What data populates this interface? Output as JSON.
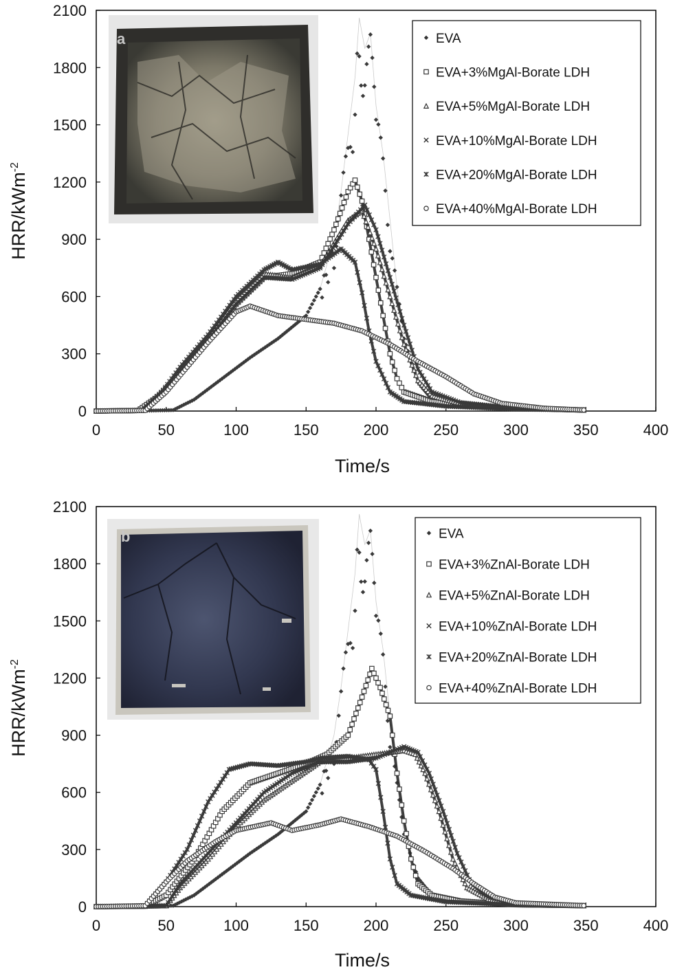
{
  "chart_data": [
    {
      "type": "scatter",
      "panel_label": "a",
      "xlabel": "Time/s",
      "ylabel": "HRR/kWm",
      "ylabel_sup": "-2",
      "xlim": [
        0,
        400
      ],
      "ylim": [
        0,
        2100
      ],
      "xticks": [
        0,
        50,
        100,
        150,
        200,
        250,
        300,
        350,
        400
      ],
      "yticks": [
        0,
        300,
        600,
        900,
        1200,
        1500,
        1800,
        2100
      ],
      "legend_position": "top-right",
      "inset_image": "charred-residue-photo-light",
      "series": [
        {
          "name": "EVA",
          "marker": "diamond",
          "points": [
            [
              0,
              0
            ],
            [
              35,
              2
            ],
            [
              55,
              5
            ],
            [
              70,
              60
            ],
            [
              90,
              170
            ],
            [
              110,
              280
            ],
            [
              130,
              380
            ],
            [
              150,
              500
            ],
            [
              160,
              640
            ],
            [
              170,
              900
            ],
            [
              175,
              1150
            ],
            [
              180,
              1450
            ],
            [
              185,
              1750
            ],
            [
              188,
              2060
            ],
            [
              192,
              1900
            ],
            [
              196,
              1980
            ],
            [
              200,
              1600
            ],
            [
              205,
              1350
            ],
            [
              210,
              1000
            ],
            [
              215,
              650
            ],
            [
              220,
              380
            ],
            [
              230,
              150
            ],
            [
              240,
              60
            ],
            [
              260,
              25
            ],
            [
              300,
              10
            ],
            [
              350,
              5
            ]
          ]
        },
        {
          "name": "EVA+3%MgAl-Borate LDH",
          "marker": "square",
          "points": [
            [
              0,
              0
            ],
            [
              30,
              3
            ],
            [
              45,
              80
            ],
            [
              60,
              200
            ],
            [
              80,
              370
            ],
            [
              100,
              560
            ],
            [
              120,
              700
            ],
            [
              140,
              720
            ],
            [
              160,
              780
            ],
            [
              170,
              950
            ],
            [
              180,
              1150
            ],
            [
              185,
              1210
            ],
            [
              190,
              1100
            ],
            [
              195,
              900
            ],
            [
              200,
              700
            ],
            [
              205,
              500
            ],
            [
              210,
              300
            ],
            [
              215,
              170
            ],
            [
              220,
              100
            ],
            [
              240,
              50
            ],
            [
              280,
              20
            ],
            [
              350,
              5
            ]
          ]
        },
        {
          "name": "EVA+5%MgAl-Borate LDH",
          "marker": "triangle",
          "points": [
            [
              0,
              0
            ],
            [
              32,
              3
            ],
            [
              48,
              100
            ],
            [
              60,
              210
            ],
            [
              80,
              380
            ],
            [
              100,
              580
            ],
            [
              120,
              720
            ],
            [
              140,
              700
            ],
            [
              160,
              760
            ],
            [
              180,
              1000
            ],
            [
              190,
              1050
            ],
            [
              200,
              850
            ],
            [
              210,
              600
            ],
            [
              220,
              350
            ],
            [
              230,
              160
            ],
            [
              240,
              80
            ],
            [
              260,
              40
            ],
            [
              300,
              15
            ],
            [
              350,
              5
            ]
          ]
        },
        {
          "name": "EVA+10%MgAl-Borate LDH",
          "marker": "x",
          "points": [
            [
              0,
              0
            ],
            [
              33,
              3
            ],
            [
              48,
              90
            ],
            [
              60,
              200
            ],
            [
              80,
              370
            ],
            [
              100,
              560
            ],
            [
              120,
              700
            ],
            [
              140,
              690
            ],
            [
              160,
              750
            ],
            [
              180,
              980
            ],
            [
              192,
              1080
            ],
            [
              200,
              950
            ],
            [
              210,
              700
            ],
            [
              220,
              450
            ],
            [
              230,
              220
            ],
            [
              240,
              100
            ],
            [
              260,
              45
            ],
            [
              300,
              15
            ],
            [
              350,
              5
            ]
          ]
        },
        {
          "name": "EVA+20%MgAl-Borate LDH",
          "marker": "asterisk",
          "points": [
            [
              0,
              0
            ],
            [
              33,
              3
            ],
            [
              48,
              110
            ],
            [
              60,
              230
            ],
            [
              80,
              400
            ],
            [
              100,
              600
            ],
            [
              120,
              740
            ],
            [
              130,
              780
            ],
            [
              140,
              740
            ],
            [
              160,
              770
            ],
            [
              175,
              850
            ],
            [
              185,
              780
            ],
            [
              190,
              620
            ],
            [
              195,
              420
            ],
            [
              200,
              260
            ],
            [
              210,
              100
            ],
            [
              220,
              50
            ],
            [
              250,
              25
            ],
            [
              300,
              10
            ],
            [
              350,
              5
            ]
          ]
        },
        {
          "name": "EVA+40%MgAl-Borate LDH",
          "marker": "circle",
          "points": [
            [
              0,
              0
            ],
            [
              35,
              3
            ],
            [
              50,
              100
            ],
            [
              65,
              230
            ],
            [
              80,
              360
            ],
            [
              100,
              520
            ],
            [
              110,
              550
            ],
            [
              130,
              500
            ],
            [
              150,
              480
            ],
            [
              170,
              460
            ],
            [
              190,
              420
            ],
            [
              210,
              350
            ],
            [
              230,
              260
            ],
            [
              250,
              180
            ],
            [
              270,
              90
            ],
            [
              290,
              40
            ],
            [
              320,
              15
            ],
            [
              350,
              5
            ]
          ]
        }
      ]
    },
    {
      "type": "scatter",
      "panel_label": "b",
      "xlabel": "Time/s",
      "ylabel": "HRR/kWm",
      "ylabel_sup": "-2",
      "xlim": [
        0,
        400
      ],
      "ylim": [
        0,
        2100
      ],
      "xticks": [
        0,
        50,
        100,
        150,
        200,
        250,
        300,
        350,
        400
      ],
      "yticks": [
        0,
        300,
        600,
        900,
        1200,
        1500,
        1800,
        2100
      ],
      "legend_position": "top-right",
      "inset_image": "charred-residue-photo-dark",
      "series": [
        {
          "name": "EVA",
          "marker": "diamond",
          "points": [
            [
              0,
              0
            ],
            [
              35,
              2
            ],
            [
              55,
              5
            ],
            [
              70,
              60
            ],
            [
              90,
              170
            ],
            [
              110,
              280
            ],
            [
              130,
              380
            ],
            [
              150,
              500
            ],
            [
              160,
              640
            ],
            [
              170,
              900
            ],
            [
              175,
              1150
            ],
            [
              180,
              1450
            ],
            [
              185,
              1750
            ],
            [
              188,
              2060
            ],
            [
              192,
              1900
            ],
            [
              196,
              1980
            ],
            [
              200,
              1600
            ],
            [
              205,
              1350
            ],
            [
              210,
              1000
            ],
            [
              215,
              650
            ],
            [
              220,
              380
            ],
            [
              230,
              150
            ],
            [
              240,
              60
            ],
            [
              260,
              25
            ],
            [
              300,
              10
            ],
            [
              350,
              5
            ]
          ]
        },
        {
          "name": "EVA+3%ZnAl-Borate LDH",
          "marker": "square",
          "points": [
            [
              0,
              0
            ],
            [
              35,
              2
            ],
            [
              50,
              60
            ],
            [
              70,
              250
            ],
            [
              90,
              500
            ],
            [
              110,
              650
            ],
            [
              130,
              700
            ],
            [
              150,
              750
            ],
            [
              165,
              800
            ],
            [
              180,
              900
            ],
            [
              190,
              1100
            ],
            [
              197,
              1250
            ],
            [
              203,
              1150
            ],
            [
              210,
              1000
            ],
            [
              215,
              700
            ],
            [
              220,
              450
            ],
            [
              225,
              250
            ],
            [
              230,
              120
            ],
            [
              240,
              60
            ],
            [
              260,
              30
            ],
            [
              300,
              10
            ],
            [
              350,
              5
            ]
          ]
        },
        {
          "name": "EVA+5%ZnAl-Borate LDH",
          "marker": "triangle",
          "points": [
            [
              0,
              0
            ],
            [
              50,
              5
            ],
            [
              60,
              100
            ],
            [
              80,
              250
            ],
            [
              100,
              420
            ],
            [
              120,
              560
            ],
            [
              140,
              660
            ],
            [
              160,
              760
            ],
            [
              180,
              780
            ],
            [
              200,
              800
            ],
            [
              220,
              820
            ],
            [
              228,
              800
            ],
            [
              235,
              700
            ],
            [
              245,
              500
            ],
            [
              255,
              250
            ],
            [
              265,
              100
            ],
            [
              280,
              40
            ],
            [
              300,
              15
            ],
            [
              350,
              5
            ]
          ]
        },
        {
          "name": "EVA+10%ZnAl-Borate LDH",
          "marker": "x",
          "points": [
            [
              0,
              0
            ],
            [
              50,
              5
            ],
            [
              60,
              120
            ],
            [
              80,
              280
            ],
            [
              100,
              440
            ],
            [
              120,
              600
            ],
            [
              140,
              700
            ],
            [
              160,
              760
            ],
            [
              180,
              760
            ],
            [
              200,
              780
            ],
            [
              220,
              840
            ],
            [
              230,
              810
            ],
            [
              238,
              700
            ],
            [
              248,
              500
            ],
            [
              258,
              280
            ],
            [
              268,
              120
            ],
            [
              280,
              50
            ],
            [
              300,
              15
            ],
            [
              350,
              5
            ]
          ]
        },
        {
          "name": "EVA+20%ZnAl-Borate LDH",
          "marker": "asterisk",
          "points": [
            [
              0,
              0
            ],
            [
              35,
              5
            ],
            [
              50,
              130
            ],
            [
              65,
              300
            ],
            [
              80,
              550
            ],
            [
              95,
              720
            ],
            [
              110,
              750
            ],
            [
              130,
              740
            ],
            [
              150,
              760
            ],
            [
              160,
              780
            ],
            [
              180,
              790
            ],
            [
              195,
              770
            ],
            [
              200,
              720
            ],
            [
              205,
              500
            ],
            [
              210,
              250
            ],
            [
              215,
              120
            ],
            [
              225,
              60
            ],
            [
              250,
              25
            ],
            [
              300,
              10
            ],
            [
              350,
              5
            ]
          ]
        },
        {
          "name": "EVA+40%ZnAl-Borate LDH",
          "marker": "circle",
          "points": [
            [
              0,
              0
            ],
            [
              35,
              5
            ],
            [
              50,
              130
            ],
            [
              65,
              240
            ],
            [
              85,
              340
            ],
            [
              100,
              400
            ],
            [
              125,
              440
            ],
            [
              140,
              400
            ],
            [
              160,
              430
            ],
            [
              175,
              460
            ],
            [
              195,
              420
            ],
            [
              215,
              370
            ],
            [
              235,
              290
            ],
            [
              255,
              200
            ],
            [
              270,
              120
            ],
            [
              285,
              50
            ],
            [
              300,
              20
            ],
            [
              350,
              5
            ]
          ]
        }
      ]
    }
  ]
}
